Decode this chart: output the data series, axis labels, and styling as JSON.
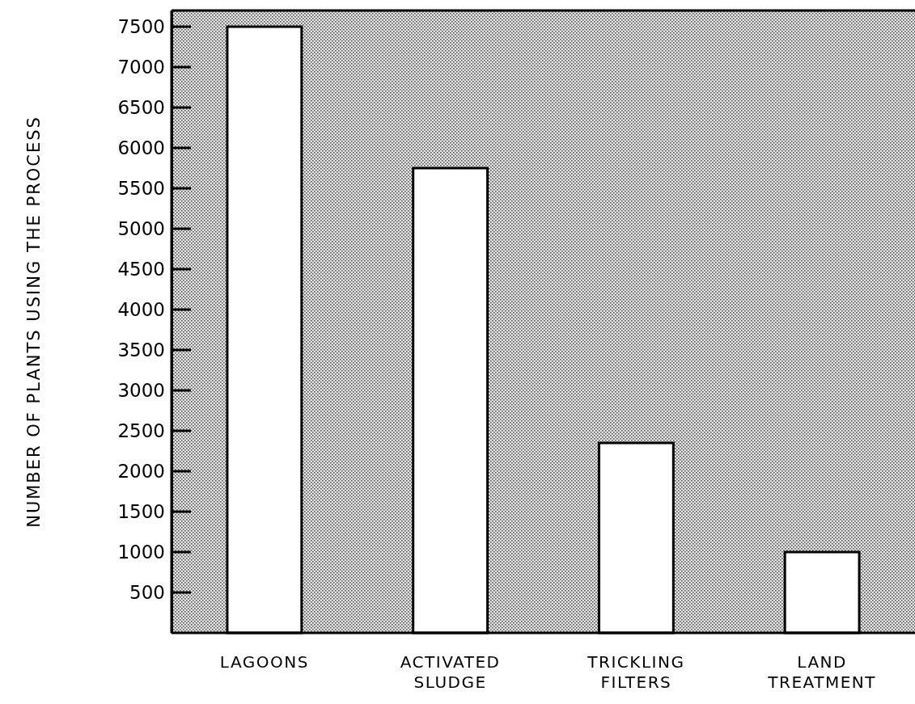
{
  "chart_data": {
    "type": "bar",
    "ylabel": "NUMBER OF PLANTS USING THE PROCESS",
    "categories": [
      "LAGOONS",
      "ACTIVATED SLUDGE",
      "TRICKLING FILTERS",
      "LAND TREATMENT"
    ],
    "values": [
      7500,
      5750,
      2350,
      1000
    ],
    "color": "#ffffff",
    "ylim": [
      0,
      7700
    ],
    "yticks": [
      500,
      1000,
      1500,
      2000,
      2500,
      3000,
      3500,
      4000,
      4500,
      5000,
      5500,
      6000,
      6500,
      7000,
      7500
    ],
    "grid": false
  }
}
